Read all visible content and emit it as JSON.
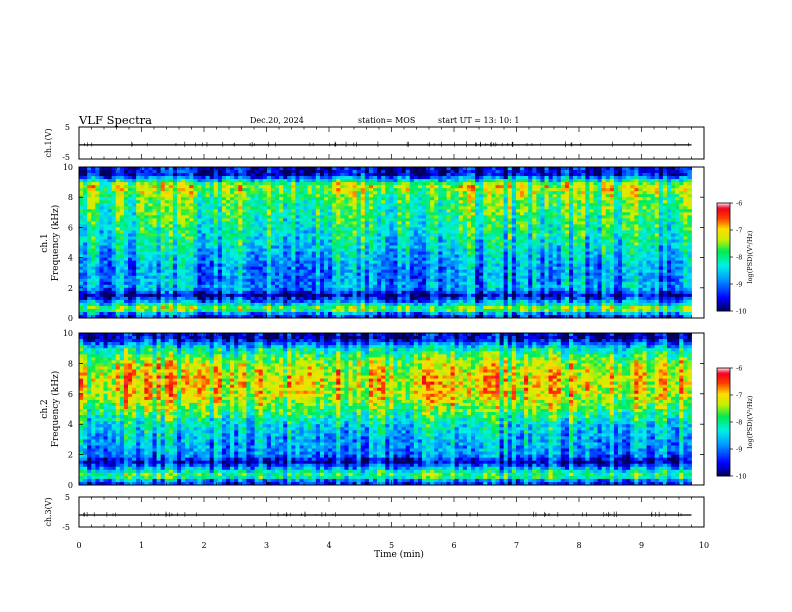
{
  "header": {
    "title": "VLF Spectra",
    "date": "Dec.20, 2024",
    "station": "station= MOS",
    "start": "start  UT =   13: 10: 1"
  },
  "chart_data": [
    {
      "type": "line",
      "panel": "ch1-waveform",
      "ylabel": "ch.1(V)",
      "ylim": [
        -5,
        5
      ],
      "yticklabels": [
        "5",
        "-5"
      ],
      "x": [
        0,
        1,
        2,
        3,
        4,
        5,
        6,
        7,
        8,
        9,
        9.8
      ],
      "values": [
        -0.6,
        -0.6,
        -0.6,
        -0.6,
        -0.6,
        -0.6,
        -0.6,
        -0.6,
        -0.6,
        -0.6,
        -0.6
      ]
    },
    {
      "type": "heatmap",
      "panel": "ch1-spectrogram",
      "ylabel": "ch.1\nFrequency (kHz)",
      "xlim": [
        0,
        10
      ],
      "ylim": [
        0,
        10
      ],
      "yticks": [
        0,
        2,
        4,
        6,
        8,
        10
      ],
      "colorbar": {
        "label": "log(PSD)(V²/Hz)",
        "range": [
          -10,
          -6
        ],
        "ticks": [
          "-6",
          "-7",
          "-8",
          "-9",
          "-10"
        ]
      },
      "data_extent_min": 9.8,
      "mean_profile": {
        "freq_khz": [
          0.2,
          0.6,
          1.0,
          1.5,
          2.0,
          3.0,
          4.0,
          5.0,
          6.0,
          7.0,
          8.0,
          8.8,
          9.5
        ],
        "log_psd": [
          -9.2,
          -7.2,
          -8.6,
          -9.6,
          -8.6,
          -8.8,
          -8.5,
          -8.2,
          -8.0,
          -7.8,
          -7.6,
          -7.2,
          -9.5
        ]
      }
    },
    {
      "type": "heatmap",
      "panel": "ch2-spectrogram",
      "ylabel": "ch.2\nFrequency (kHz)",
      "xlim": [
        0,
        10
      ],
      "ylim": [
        0,
        10
      ],
      "yticks": [
        0,
        2,
        4,
        6,
        8,
        10
      ],
      "colorbar": {
        "label": "log(PSD)(V²/Hz)",
        "range": [
          -10,
          -6
        ],
        "ticks": [
          "-6",
          "-7",
          "-8",
          "-9",
          "-10"
        ]
      },
      "data_extent_min": 9.8,
      "mean_profile": {
        "freq_khz": [
          0.2,
          0.6,
          1.0,
          1.5,
          2.0,
          3.0,
          4.0,
          5.0,
          6.0,
          7.0,
          8.0,
          9.0,
          9.6
        ],
        "log_psd": [
          -9.2,
          -7.6,
          -8.4,
          -9.6,
          -8.8,
          -8.6,
          -8.3,
          -7.6,
          -7.1,
          -7.0,
          -7.3,
          -8.2,
          -9.6
        ]
      }
    },
    {
      "type": "line",
      "panel": "ch3-waveform",
      "ylabel": "ch.3(V)",
      "ylim": [
        -5,
        5
      ],
      "yticklabels": [
        "5",
        "-5"
      ],
      "x": [
        0,
        1,
        2,
        3,
        4,
        5,
        6,
        7,
        8,
        9,
        9.8
      ],
      "values": [
        -1.0,
        -1.0,
        -1.0,
        -1.0,
        -1.0,
        -1.0,
        -1.0,
        -1.0,
        -1.0,
        -1.0,
        -1.0
      ]
    }
  ],
  "xaxis": {
    "label": "Time (min)",
    "xlim": [
      0,
      10
    ],
    "ticklabels": [
      "0",
      "1",
      "2",
      "3",
      "4",
      "5",
      "6",
      "7",
      "8",
      "9",
      "10"
    ]
  }
}
